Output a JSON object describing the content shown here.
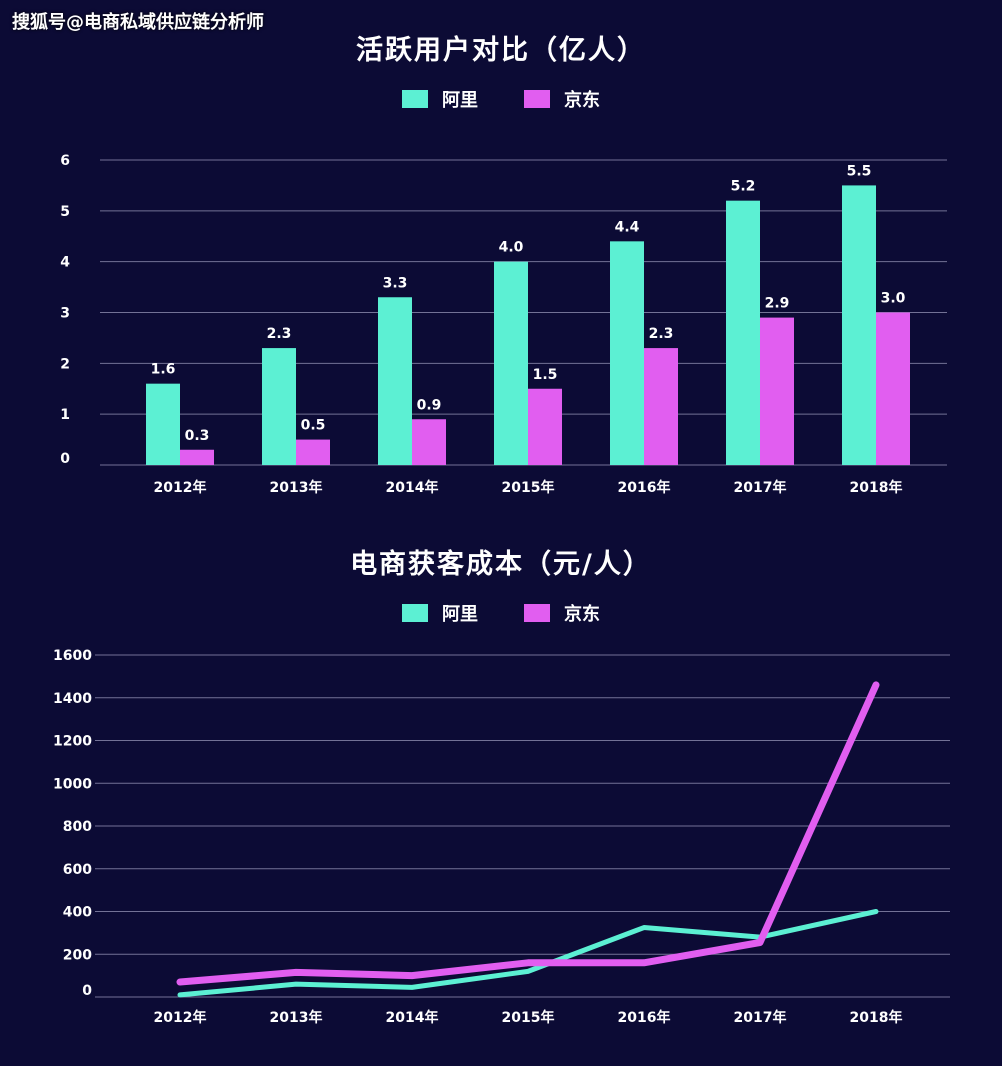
{
  "watermark": "搜狐号@电商私域供应链分析师",
  "chart_data": [
    {
      "type": "bar",
      "title": "活跃用户对比（亿人）",
      "categories": [
        "2012年",
        "2013年",
        "2014年",
        "2015年",
        "2016年",
        "2017年",
        "2018年"
      ],
      "series": [
        {
          "name": "阿里",
          "color": "#5cf0d3",
          "values": [
            1.6,
            2.3,
            3.3,
            4.0,
            4.4,
            5.2,
            5.5
          ]
        },
        {
          "name": "京东",
          "color": "#e15ef0",
          "values": [
            0.3,
            0.5,
            0.9,
            1.5,
            2.3,
            2.9,
            3.0
          ]
        }
      ],
      "data_labels": [
        [
          "1.6",
          "2.3",
          "3.3",
          "4.0",
          "4.4",
          "5.2",
          "5.5"
        ],
        [
          "0.3",
          "0.5",
          "0.9",
          "1.5",
          "2.3",
          "2.9",
          "3.0"
        ]
      ],
      "ylim": [
        0,
        6
      ],
      "yticks": [
        0,
        1,
        2,
        3,
        4,
        5,
        6
      ],
      "grid": true,
      "legend": "top-center"
    },
    {
      "type": "line",
      "title": "电商获客成本（元/人）",
      "categories": [
        "2012年",
        "2013年",
        "2014年",
        "2015年",
        "2016年",
        "2017年",
        "2018年"
      ],
      "series": [
        {
          "name": "阿里",
          "color": "#5cf0d3",
          "values": [
            10,
            60,
            45,
            120,
            325,
            280,
            400
          ]
        },
        {
          "name": "京东",
          "color": "#e15ef0",
          "values": [
            70,
            115,
            100,
            160,
            160,
            255,
            1460
          ]
        }
      ],
      "ylim": [
        0,
        1600
      ],
      "yticks": [
        0,
        200,
        400,
        600,
        800,
        1000,
        1200,
        1400,
        1600
      ],
      "grid": true,
      "legend": "top-center"
    }
  ]
}
